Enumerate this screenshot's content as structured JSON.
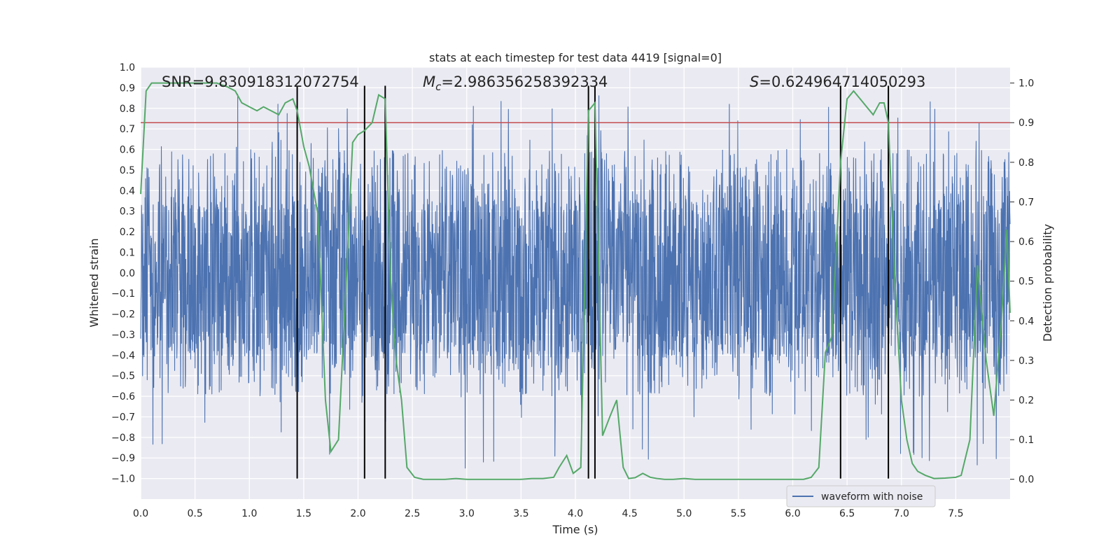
{
  "chart_data": {
    "type": "line",
    "title": "stats at each timestep for test data 4419 [signal=0]",
    "xlabel": "Time (s)",
    "ylabel": "Whitened strain",
    "y2label": "Detection probability",
    "xlim": [
      0.0,
      8.0
    ],
    "ylim": [
      -1.1,
      1.0
    ],
    "y2lim": [
      -0.05,
      1.04
    ],
    "x_ticks": [
      0.0,
      0.5,
      1.0,
      1.5,
      2.0,
      2.5,
      3.0,
      3.5,
      4.0,
      4.5,
      5.0,
      5.5,
      6.0,
      6.5,
      7.0,
      7.5
    ],
    "x_tick_labels": [
      "0.0",
      "0.5",
      "1.0",
      "1.5",
      "2.0",
      "2.5",
      "3.0",
      "3.5",
      "4.0",
      "4.5",
      "5.0",
      "5.5",
      "6.0",
      "6.5",
      "7.0",
      "7.5"
    ],
    "y_ticks": [
      1.0,
      0.9,
      0.8,
      0.7,
      0.6,
      0.5,
      0.4,
      0.3,
      0.2,
      0.1,
      0.0,
      -0.1,
      -0.2,
      -0.3,
      -0.4,
      -0.5,
      -0.6,
      -0.7,
      -0.8,
      -0.9,
      -1.0
    ],
    "y_tick_labels": [
      "1.0",
      "0.9",
      "0.8",
      "0.7",
      "0.6",
      "0.5",
      "0.4",
      "0.3",
      "0.2",
      "0.1",
      "0.0",
      "−0.1",
      "−0.2",
      "−0.3",
      "−0.4",
      "−0.5",
      "−0.6",
      "−0.7",
      "−0.8",
      "−0.9",
      "−1.0"
    ],
    "y2_ticks": [
      1.0,
      0.9,
      0.8,
      0.7,
      0.6,
      0.5,
      0.4,
      0.3,
      0.2,
      0.1,
      0.0
    ],
    "y2_tick_labels": [
      "1.0",
      "0.9",
      "0.8",
      "0.7",
      "0.6",
      "0.5",
      "0.4",
      "0.3",
      "0.2",
      "0.1",
      "0.0"
    ],
    "grid": true,
    "legend": {
      "position": "bottom-right",
      "entries": [
        "waveform with noise"
      ]
    },
    "annotations": {
      "snr": "SNR=9.830918312072754",
      "mc_symbol": "M",
      "mc_subscript": "c",
      "mc_value": "=2.986356258392334",
      "s_symbol": "S",
      "s_value": "=0.624964714050293"
    },
    "waveform": {
      "name": "waveform with noise",
      "color": "#4c72b0",
      "typical_range": [
        -0.42,
        0.35
      ],
      "peak_range": [
        -1.0,
        0.92
      ]
    },
    "threshold": {
      "value": 0.9,
      "axis": "y2",
      "color": "#c44e52"
    },
    "vertical_lines": [
      1.44,
      2.06,
      2.25,
      4.12,
      4.18,
      6.44,
      6.88
    ],
    "vertical_line_range": [
      -1.0,
      0.91
    ],
    "detection_probability": {
      "color": "#55a868",
      "x": [
        0.0,
        0.05,
        0.1,
        0.2,
        0.3,
        0.4,
        0.5,
        0.6,
        0.7,
        0.8,
        0.87,
        0.93,
        1.0,
        1.07,
        1.13,
        1.2,
        1.27,
        1.33,
        1.4,
        1.44,
        1.5,
        1.55,
        1.63,
        1.7,
        1.75,
        1.82,
        1.9,
        1.95,
        2.0,
        2.06,
        2.13,
        2.19,
        2.25,
        2.3,
        2.35,
        2.4,
        2.45,
        2.52,
        2.6,
        2.7,
        2.8,
        2.9,
        3.0,
        3.1,
        3.2,
        3.3,
        3.4,
        3.5,
        3.6,
        3.7,
        3.8,
        3.85,
        3.92,
        3.98,
        4.05,
        4.12,
        4.18,
        4.25,
        4.32,
        4.38,
        4.44,
        4.49,
        4.55,
        4.62,
        4.69,
        4.75,
        4.82,
        4.9,
        5.0,
        5.1,
        5.2,
        5.3,
        5.4,
        5.5,
        5.6,
        5.7,
        5.8,
        5.9,
        6.0,
        6.1,
        6.17,
        6.24,
        6.3,
        6.36,
        6.44,
        6.5,
        6.56,
        6.62,
        6.68,
        6.74,
        6.8,
        6.84,
        6.88,
        6.94,
        7.0,
        7.05,
        7.1,
        7.15,
        7.22,
        7.3,
        7.4,
        7.5,
        7.55,
        7.63,
        7.7,
        7.78,
        7.85,
        7.92,
        7.97,
        8.0
      ],
      "values": [
        0.72,
        0.98,
        1.0,
        1.0,
        1.0,
        1.0,
        1.0,
        1.0,
        1.0,
        0.99,
        0.98,
        0.95,
        0.94,
        0.93,
        0.94,
        0.93,
        0.92,
        0.95,
        0.96,
        0.93,
        0.84,
        0.79,
        0.67,
        0.2,
        0.07,
        0.1,
        0.55,
        0.85,
        0.87,
        0.88,
        0.9,
        0.97,
        0.96,
        0.5,
        0.3,
        0.2,
        0.03,
        0.005,
        0.0,
        0.0,
        0.0,
        0.002,
        0.0,
        0.0,
        0.0,
        0.0,
        0.0,
        0.0,
        0.002,
        0.002,
        0.005,
        0.03,
        0.06,
        0.015,
        0.03,
        0.93,
        0.95,
        0.11,
        0.16,
        0.2,
        0.03,
        0.002,
        0.004,
        0.015,
        0.005,
        0.002,
        0.0,
        0.0,
        0.002,
        0.0,
        0.0,
        0.0,
        0.0,
        0.0,
        0.0,
        0.0,
        0.0,
        0.0,
        0.0,
        0.0,
        0.005,
        0.03,
        0.32,
        0.36,
        0.8,
        0.96,
        0.98,
        0.96,
        0.94,
        0.92,
        0.95,
        0.95,
        0.9,
        0.5,
        0.2,
        0.1,
        0.04,
        0.02,
        0.01,
        0.002,
        0.003,
        0.005,
        0.01,
        0.1,
        0.54,
        0.3,
        0.16,
        0.4,
        0.63,
        0.42
      ]
    }
  }
}
